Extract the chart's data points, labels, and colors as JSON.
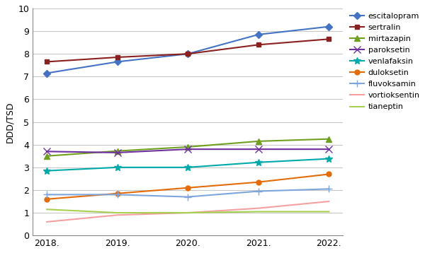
{
  "years": [
    "2018.",
    "2019.",
    "2020.",
    "2021.",
    "2022."
  ],
  "series": [
    {
      "name": "escitalopram",
      "values": [
        7.15,
        7.65,
        8.0,
        8.85,
        9.2
      ],
      "color": "#4472C4",
      "marker": "D",
      "markersize": 5,
      "linewidth": 1.5
    },
    {
      "name": "sertralin",
      "values": [
        7.65,
        7.85,
        8.0,
        8.4,
        8.65
      ],
      "color": "#8B2020",
      "marker": "s",
      "markersize": 5,
      "linewidth": 1.5
    },
    {
      "name": "mirtazapin",
      "values": [
        3.5,
        3.72,
        3.9,
        4.15,
        4.25
      ],
      "color": "#70A020",
      "marker": "^",
      "markersize": 6,
      "linewidth": 1.5
    },
    {
      "name": "paroksetin",
      "values": [
        3.7,
        3.65,
        3.8,
        3.8,
        3.8
      ],
      "color": "#7030A0",
      "marker": "x",
      "markersize": 7,
      "linewidth": 1.5
    },
    {
      "name": "venlafaksin",
      "values": [
        2.85,
        3.0,
        3.0,
        3.22,
        3.38
      ],
      "color": "#00AAAA",
      "marker": "*",
      "markersize": 7,
      "linewidth": 1.5
    },
    {
      "name": "duloksetin",
      "values": [
        1.6,
        1.85,
        2.1,
        2.35,
        2.7
      ],
      "color": "#E36C09",
      "marker": "o",
      "markersize": 5,
      "linewidth": 1.5
    },
    {
      "name": "fluvoksamin",
      "values": [
        1.8,
        1.8,
        1.7,
        1.95,
        2.05
      ],
      "color": "#7EA6DC",
      "marker": "+",
      "markersize": 7,
      "linewidth": 1.5
    },
    {
      "name": "vortioksentin",
      "values": [
        0.6,
        0.9,
        1.0,
        1.2,
        1.5
      ],
      "color": "#F4A0A0",
      "marker": "",
      "markersize": 0,
      "linewidth": 1.5
    },
    {
      "name": "tianeptin",
      "values": [
        1.15,
        1.0,
        1.0,
        1.05,
        1.05
      ],
      "color": "#A8D050",
      "marker": "",
      "markersize": 0,
      "linewidth": 1.5
    }
  ],
  "ylabel": "DDD/TSD",
  "ylim": [
    0,
    10
  ],
  "yticks": [
    0,
    1,
    2,
    3,
    4,
    5,
    6,
    7,
    8,
    9,
    10
  ],
  "grid_color": "#C8C8C8"
}
